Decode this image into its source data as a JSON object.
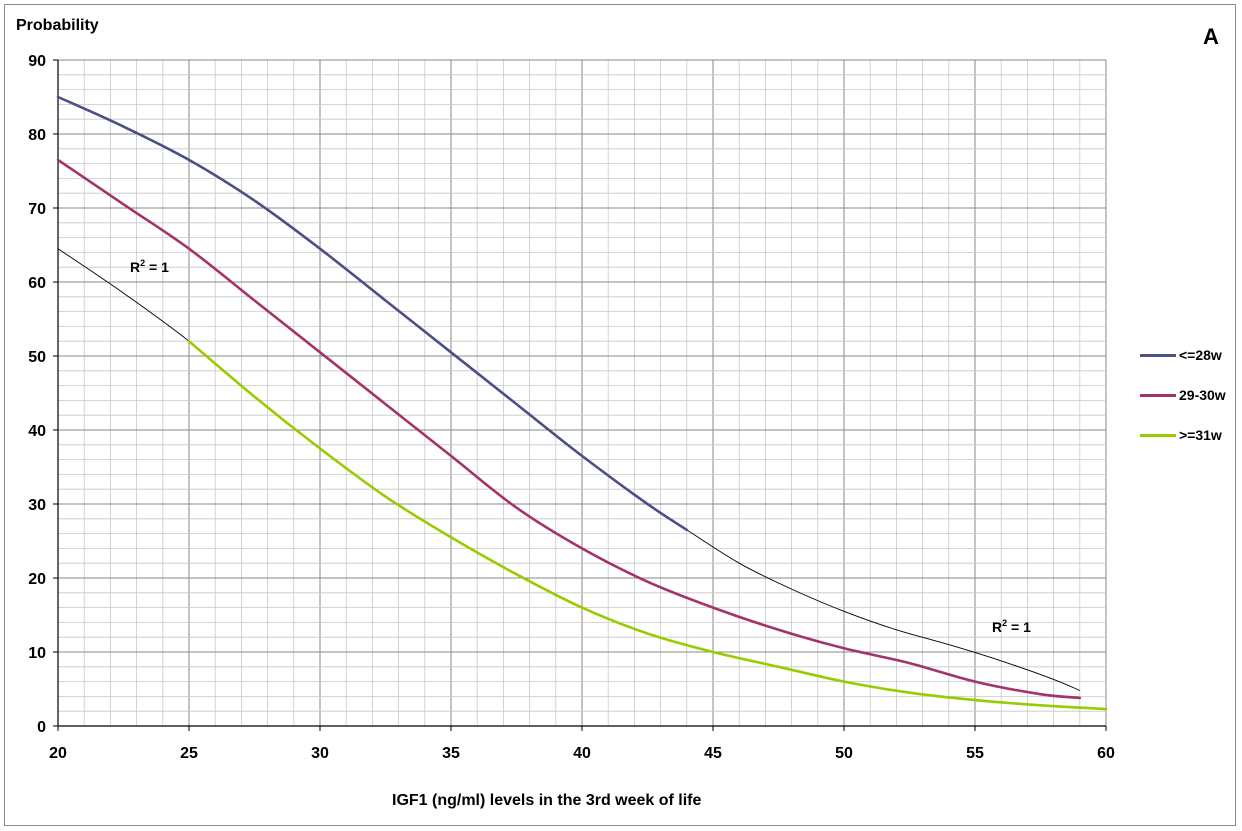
{
  "chart_data": {
    "type": "line",
    "ylabel": "Probability",
    "xlabel": "IGF1 (ng/ml) levels in the 3rd week of life",
    "panel_label": "A",
    "xlim": [
      20,
      60
    ],
    "ylim": [
      0,
      90
    ],
    "x_ticks": [
      20,
      25,
      30,
      35,
      40,
      45,
      50,
      55,
      60
    ],
    "y_ticks": [
      0,
      10,
      20,
      30,
      40,
      50,
      60,
      70,
      80,
      90
    ],
    "grid": true,
    "legend_position": "right",
    "series": [
      {
        "name": "<=28w",
        "color": "#4a4f86",
        "x": [
          20,
          22.5,
          25,
          27.5,
          30,
          32.5,
          35,
          37.5,
          40,
          42.5,
          44
        ],
        "y": [
          85,
          81,
          76.5,
          71,
          64.5,
          57.5,
          50.5,
          43.5,
          36.5,
          30,
          26.5
        ]
      },
      {
        "name": "29-30w",
        "color": "#a3336a",
        "x": [
          20,
          22.5,
          25,
          27.5,
          30,
          32.5,
          35,
          37.5,
          40,
          42.5,
          45,
          47.5,
          50,
          52.5,
          55,
          57.5,
          59
        ],
        "y": [
          76.5,
          70.5,
          64.5,
          57.5,
          50.5,
          43.5,
          36.5,
          29.5,
          24,
          19.5,
          16,
          13,
          10.5,
          8.5,
          6,
          4.3,
          3.8
        ]
      },
      {
        "name": ">=31w",
        "color": "#99cc00",
        "x": [
          25,
          27.5,
          30,
          32.5,
          35,
          37.5,
          40,
          42.5,
          45,
          47.5,
          50,
          52.5,
          55,
          57.5,
          60
        ],
        "y": [
          52,
          44.5,
          37.5,
          31,
          25.5,
          20.5,
          16,
          12.5,
          10,
          8,
          6,
          4.5,
          3.5,
          2.8,
          2.3
        ]
      }
    ],
    "trendlines": [
      {
        "label": "R² = 1",
        "color": "#000000",
        "x": [
          20,
          22.5,
          25,
          27.5,
          30,
          32.5,
          35,
          37.5,
          40,
          42.5,
          45,
          47.5,
          50,
          52.5,
          55,
          57.5,
          60
        ],
        "y": [
          64.5,
          58.5,
          52,
          44.5,
          37.5,
          31,
          25.5,
          20.5,
          16,
          12.5,
          10,
          8,
          6,
          4.5,
          3.5,
          2.8,
          2.3
        ]
      },
      {
        "label": "R² = 1",
        "color": "#000000",
        "x": [
          44,
          46,
          48,
          50,
          52,
          54,
          56,
          58,
          59
        ],
        "y": [
          26.5,
          22,
          18.5,
          15.5,
          13,
          11,
          8.8,
          6.3,
          4.8
        ]
      }
    ]
  }
}
